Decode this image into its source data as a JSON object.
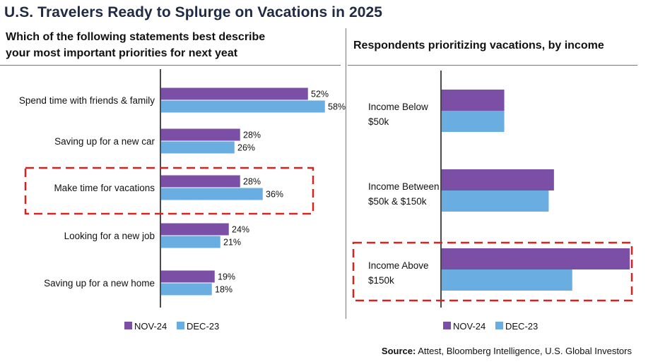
{
  "title": "U.S. Travelers Ready to Splurge on Vacations in 2025",
  "source_label": "Source:",
  "source_text": "Attest, Bloomberg Intelligence, U.S. Global Investors",
  "colors": {
    "nov24": "#7b4fa6",
    "dec23": "#6aade0",
    "highlight": "#d9221f",
    "title": "#1f2a44"
  },
  "chart_data": [
    {
      "type": "bar",
      "orientation": "horizontal",
      "title_lines": [
        "Which of the following statements best describe",
        "your most important priorities for next yeat"
      ],
      "categories": [
        "Spend time with friends & family",
        "Saving up for a new car",
        "Make time for vacations",
        "Looking for a new job",
        "Saving up for a new home"
      ],
      "series": [
        {
          "name": "NOV-24",
          "values": [
            52,
            28,
            28,
            24,
            19
          ],
          "labels": [
            "52%",
            "28%",
            "28%",
            "24%",
            "19%"
          ]
        },
        {
          "name": "DEC-23",
          "values": [
            58,
            26,
            36,
            21,
            18
          ],
          "labels": [
            "58%",
            "26%",
            "36%",
            "21%",
            "18%"
          ]
        }
      ],
      "highlighted_category": "Make time for vacations",
      "legend": "bottom"
    },
    {
      "type": "bar",
      "orientation": "horizontal",
      "title": "Respondents prioritizing vacations, by income",
      "categories": [
        [
          "Income Below",
          "$50k"
        ],
        [
          "Income Between",
          "$50k & $150k"
        ],
        [
          "Income Above",
          "$150k"
        ]
      ],
      "series": [
        {
          "name": "NOV-24",
          "values": [
            24,
            43,
            72
          ]
        },
        {
          "name": "DEC-23",
          "values": [
            24,
            41,
            50
          ]
        }
      ],
      "highlighted_category": "Income Above $150k",
      "legend": "bottom"
    }
  ]
}
